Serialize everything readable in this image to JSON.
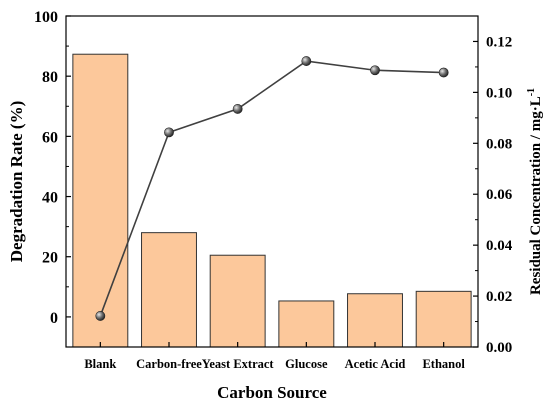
{
  "chart_data": {
    "type": "bar",
    "categories": [
      "Blank",
      "Carbon-free",
      "Yeast Extract",
      "Glucose",
      "Acetic Acid",
      "Ethanol"
    ],
    "xlabel": "Carbon Source",
    "ylabel": "Degradation Rate (%)",
    "y2label": "Residual Concentration  / mg·L",
    "y2label_superscript": "-1",
    "ylim": [
      -10,
      100
    ],
    "y2lim": [
      0,
      0.13
    ],
    "yticks": [
      0,
      20,
      40,
      60,
      80,
      100
    ],
    "y2ticks": [
      "0.00",
      "0.02",
      "0.04",
      "0.06",
      "0.08",
      "0.10",
      "0.12"
    ],
    "y2tick_values": [
      0,
      0.02,
      0.04,
      0.06,
      0.08,
      0.1,
      0.12
    ],
    "series": [
      {
        "type": "bar",
        "axis": "left",
        "values": [
          87.3,
          28.0,
          20.5,
          5.3,
          7.7,
          8.5
        ]
      },
      {
        "type": "line",
        "axis": "right",
        "values": [
          0.0122,
          0.0843,
          0.0935,
          0.1123,
          0.1087,
          0.1078
        ]
      }
    ],
    "grid": false,
    "colors": {
      "bar_fill": "#FCC89B",
      "bar_stroke": "#333333",
      "line": "#404040",
      "marker": "#5a5a5a"
    }
  }
}
